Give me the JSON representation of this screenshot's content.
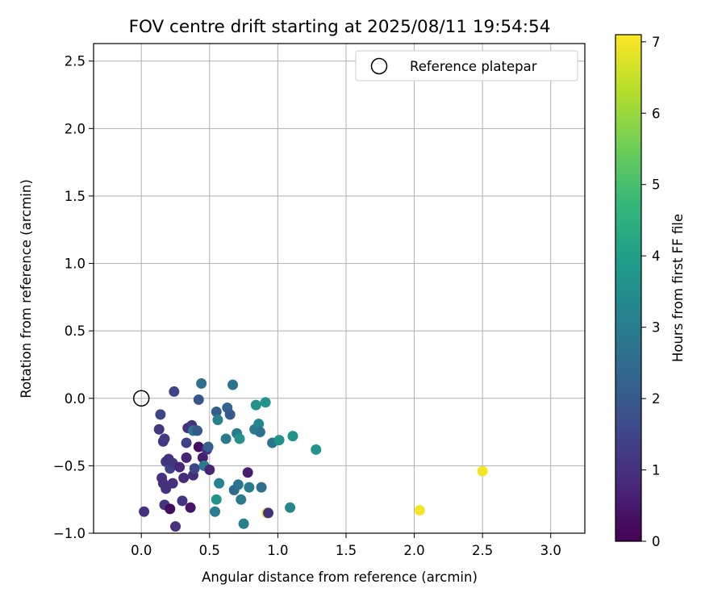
{
  "chart_data": {
    "type": "scatter",
    "title": "FOV centre drift starting at 2025/08/11 19:54:54",
    "xlabel": "Angular distance from reference (arcmin)",
    "ylabel": "Rotation from reference (arcmin)",
    "xlim": [
      -0.35,
      3.25
    ],
    "ylim": [
      -1.0,
      2.63
    ],
    "xticks": [
      0.0,
      0.5,
      1.0,
      1.5,
      2.0,
      2.5,
      3.0
    ],
    "xtick_labels": [
      "0.0",
      "0.5",
      "1.0",
      "1.5",
      "2.0",
      "2.5",
      "3.0"
    ],
    "yticks": [
      -1.0,
      -0.5,
      0.0,
      0.5,
      1.0,
      1.5,
      2.0,
      2.5
    ],
    "ytick_labels": [
      "−1.0",
      "−0.5",
      "0.0",
      "0.5",
      "1.0",
      "1.5",
      "2.0",
      "2.5"
    ],
    "grid": true,
    "legend": {
      "placement": "top-right",
      "entries": [
        {
          "label": "Reference platepar",
          "marker": "open-circle"
        }
      ]
    },
    "reference_point": {
      "x": 0.0,
      "y": 0.0
    },
    "colorbar": {
      "label": "Hours from first FF file",
      "range": [
        0,
        7.1
      ],
      "ticks": [
        0,
        1,
        2,
        3,
        4,
        5,
        6,
        7
      ],
      "colormap": "viridis"
    },
    "colormap_stops": [
      "#440154",
      "#482878",
      "#3e4989",
      "#31688e",
      "#26828e",
      "#1f9e89",
      "#35b779",
      "#6ece58",
      "#b5de2b",
      "#fde725"
    ],
    "points": [
      {
        "x": 0.02,
        "y": -0.84,
        "t": 1.0
      },
      {
        "x": 0.13,
        "y": -0.23,
        "t": 1.1
      },
      {
        "x": 0.14,
        "y": -0.12,
        "t": 1.5
      },
      {
        "x": 0.15,
        "y": -0.59,
        "t": 1.0
      },
      {
        "x": 0.16,
        "y": -0.32,
        "t": 1.2
      },
      {
        "x": 0.17,
        "y": -0.3,
        "t": 1.3
      },
      {
        "x": 0.16,
        "y": -0.63,
        "t": 1.0
      },
      {
        "x": 0.17,
        "y": -0.79,
        "t": 1.1
      },
      {
        "x": 0.18,
        "y": -0.67,
        "t": 1.0
      },
      {
        "x": 0.18,
        "y": -0.47,
        "t": 1.2
      },
      {
        "x": 0.2,
        "y": -0.45,
        "t": 1.0
      },
      {
        "x": 0.21,
        "y": -0.52,
        "t": 1.4
      },
      {
        "x": 0.21,
        "y": -0.82,
        "t": 0.2
      },
      {
        "x": 0.23,
        "y": -0.48,
        "t": 1.1
      },
      {
        "x": 0.23,
        "y": -0.63,
        "t": 1.0
      },
      {
        "x": 0.24,
        "y": 0.05,
        "t": 1.5
      },
      {
        "x": 0.25,
        "y": -0.95,
        "t": 1.0
      },
      {
        "x": 0.28,
        "y": -0.51,
        "t": 0.8
      },
      {
        "x": 0.3,
        "y": -0.76,
        "t": 1.1
      },
      {
        "x": 0.31,
        "y": -0.59,
        "t": 0.9
      },
      {
        "x": 0.33,
        "y": -0.33,
        "t": 1.4
      },
      {
        "x": 0.33,
        "y": -0.44,
        "t": 0.7
      },
      {
        "x": 0.34,
        "y": -0.22,
        "t": 1.0
      },
      {
        "x": 0.36,
        "y": -0.81,
        "t": 0.4
      },
      {
        "x": 0.37,
        "y": -0.2,
        "t": 1.1
      },
      {
        "x": 0.38,
        "y": -0.24,
        "t": 2.8
      },
      {
        "x": 0.38,
        "y": -0.57,
        "t": 0.9
      },
      {
        "x": 0.39,
        "y": -0.52,
        "t": 1.5
      },
      {
        "x": 0.41,
        "y": -0.24,
        "t": 2.0
      },
      {
        "x": 0.42,
        "y": -0.01,
        "t": 1.9
      },
      {
        "x": 0.42,
        "y": -0.36,
        "t": 0.3
      },
      {
        "x": 0.44,
        "y": 0.11,
        "t": 2.6
      },
      {
        "x": 0.45,
        "y": -0.44,
        "t": 0.6
      },
      {
        "x": 0.46,
        "y": -0.5,
        "t": 2.9
      },
      {
        "x": 0.48,
        "y": -0.38,
        "t": 1.0
      },
      {
        "x": 0.49,
        "y": -0.36,
        "t": 2.1
      },
      {
        "x": 0.5,
        "y": -0.53,
        "t": 0.7
      },
      {
        "x": 0.54,
        "y": -0.84,
        "t": 3.0
      },
      {
        "x": 0.55,
        "y": -0.75,
        "t": 3.7
      },
      {
        "x": 0.55,
        "y": -0.1,
        "t": 2.1
      },
      {
        "x": 0.56,
        "y": -0.16,
        "t": 3.1
      },
      {
        "x": 0.57,
        "y": -0.63,
        "t": 3.2
      },
      {
        "x": 0.62,
        "y": -0.3,
        "t": 2.9
      },
      {
        "x": 0.63,
        "y": -0.07,
        "t": 2.3
      },
      {
        "x": 0.65,
        "y": -0.12,
        "t": 2.0
      },
      {
        "x": 0.67,
        "y": 0.1,
        "t": 2.7
      },
      {
        "x": 0.68,
        "y": -0.68,
        "t": 2.4
      },
      {
        "x": 0.7,
        "y": -0.26,
        "t": 2.9
      },
      {
        "x": 0.71,
        "y": -0.64,
        "t": 2.8
      },
      {
        "x": 0.72,
        "y": -0.3,
        "t": 3.6
      },
      {
        "x": 0.73,
        "y": -0.75,
        "t": 2.9
      },
      {
        "x": 0.75,
        "y": -0.93,
        "t": 3.0
      },
      {
        "x": 0.78,
        "y": -0.55,
        "t": 0.6
      },
      {
        "x": 0.79,
        "y": -0.66,
        "t": 2.9
      },
      {
        "x": 0.83,
        "y": -0.23,
        "t": 2.9
      },
      {
        "x": 0.84,
        "y": -0.05,
        "t": 3.6
      },
      {
        "x": 0.86,
        "y": -0.19,
        "t": 3.3
      },
      {
        "x": 0.87,
        "y": -0.25,
        "t": 2.6
      },
      {
        "x": 0.88,
        "y": -0.66,
        "t": 2.6
      },
      {
        "x": 0.91,
        "y": -0.03,
        "t": 3.7
      },
      {
        "x": 0.92,
        "y": -0.85,
        "t": 7.0
      },
      {
        "x": 0.93,
        "y": -0.85,
        "t": 1.0
      },
      {
        "x": 0.96,
        "y": -0.33,
        "t": 2.7
      },
      {
        "x": 1.01,
        "y": -0.31,
        "t": 3.6
      },
      {
        "x": 1.09,
        "y": -0.81,
        "t": 3.3
      },
      {
        "x": 1.11,
        "y": -0.28,
        "t": 3.6
      },
      {
        "x": 1.28,
        "y": -0.38,
        "t": 3.7
      },
      {
        "x": 2.04,
        "y": -0.83,
        "t": 7.0
      },
      {
        "x": 2.5,
        "y": -0.54,
        "t": 7.0
      }
    ]
  }
}
